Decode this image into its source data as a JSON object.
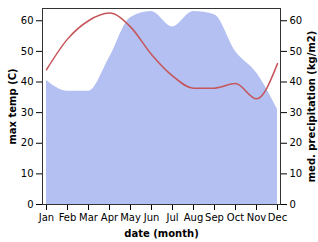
{
  "chart_data": {
    "type": "line",
    "categories": [
      "Jan",
      "Feb",
      "Mar",
      "Apr",
      "May",
      "Jun",
      "Jul",
      "Aug",
      "Sep",
      "Oct",
      "Nov",
      "Dec"
    ],
    "xlabel": "date (month)",
    "ylabel": "max temp (C)",
    "y2label": "med. precipitation (kg/m2)",
    "ylim": [
      0,
      64
    ],
    "yticks": [
      0,
      10,
      20,
      30,
      40,
      50,
      60
    ],
    "y2lim": [
      0,
      64
    ],
    "y2ticks": [
      0,
      10,
      20,
      30,
      40,
      50,
      60
    ],
    "series": [
      {
        "type": "area",
        "axis": "y2",
        "color": "#b3c0f1",
        "values": [
          40.5,
          37,
          37,
          48,
          61,
          63,
          58,
          63,
          62,
          50,
          43,
          31
        ]
      },
      {
        "type": "line",
        "axis": "y",
        "color": "#c6555a",
        "values": [
          44,
          54,
          60,
          62.5,
          58,
          49,
          42,
          38,
          38,
          39.5,
          34.5,
          46
        ]
      }
    ]
  }
}
